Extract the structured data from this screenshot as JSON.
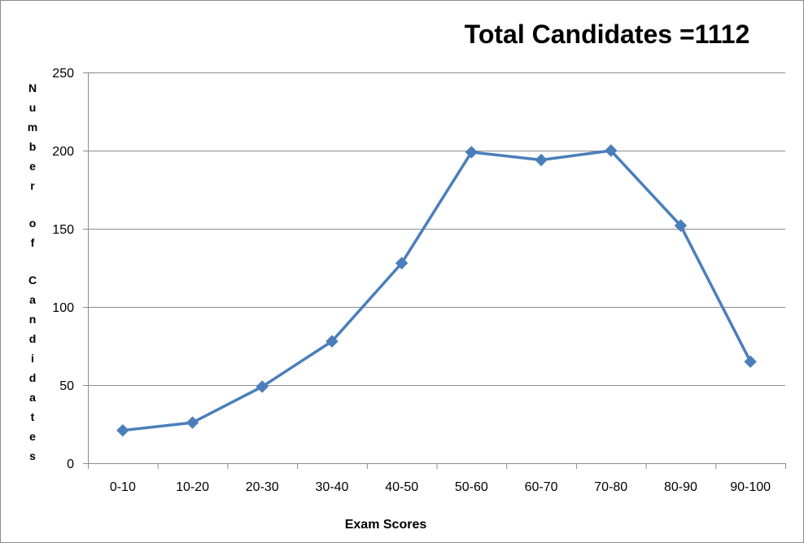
{
  "chart_data": {
    "type": "line",
    "title": "Total Candidates =1112",
    "xlabel": "Exam Scores",
    "ylabel": "Number of Candidates",
    "categories": [
      "0-10",
      "10-20",
      "20-30",
      "30-40",
      "40-50",
      "50-60",
      "60-70",
      "70-80",
      "80-90",
      "90-100"
    ],
    "series": [
      {
        "values": [
          21,
          26,
          49,
          78,
          128,
          199,
          194,
          200,
          152,
          65
        ]
      }
    ],
    "ylim": [
      0,
      250
    ],
    "yticks": [
      0,
      50,
      100,
      150,
      200,
      250
    ],
    "grid": true,
    "legend": "none",
    "marker": "diamond",
    "colors": {
      "line": "#4a7ebb",
      "grid": "#8c8c8c",
      "axis": "#8c8c8c"
    }
  }
}
